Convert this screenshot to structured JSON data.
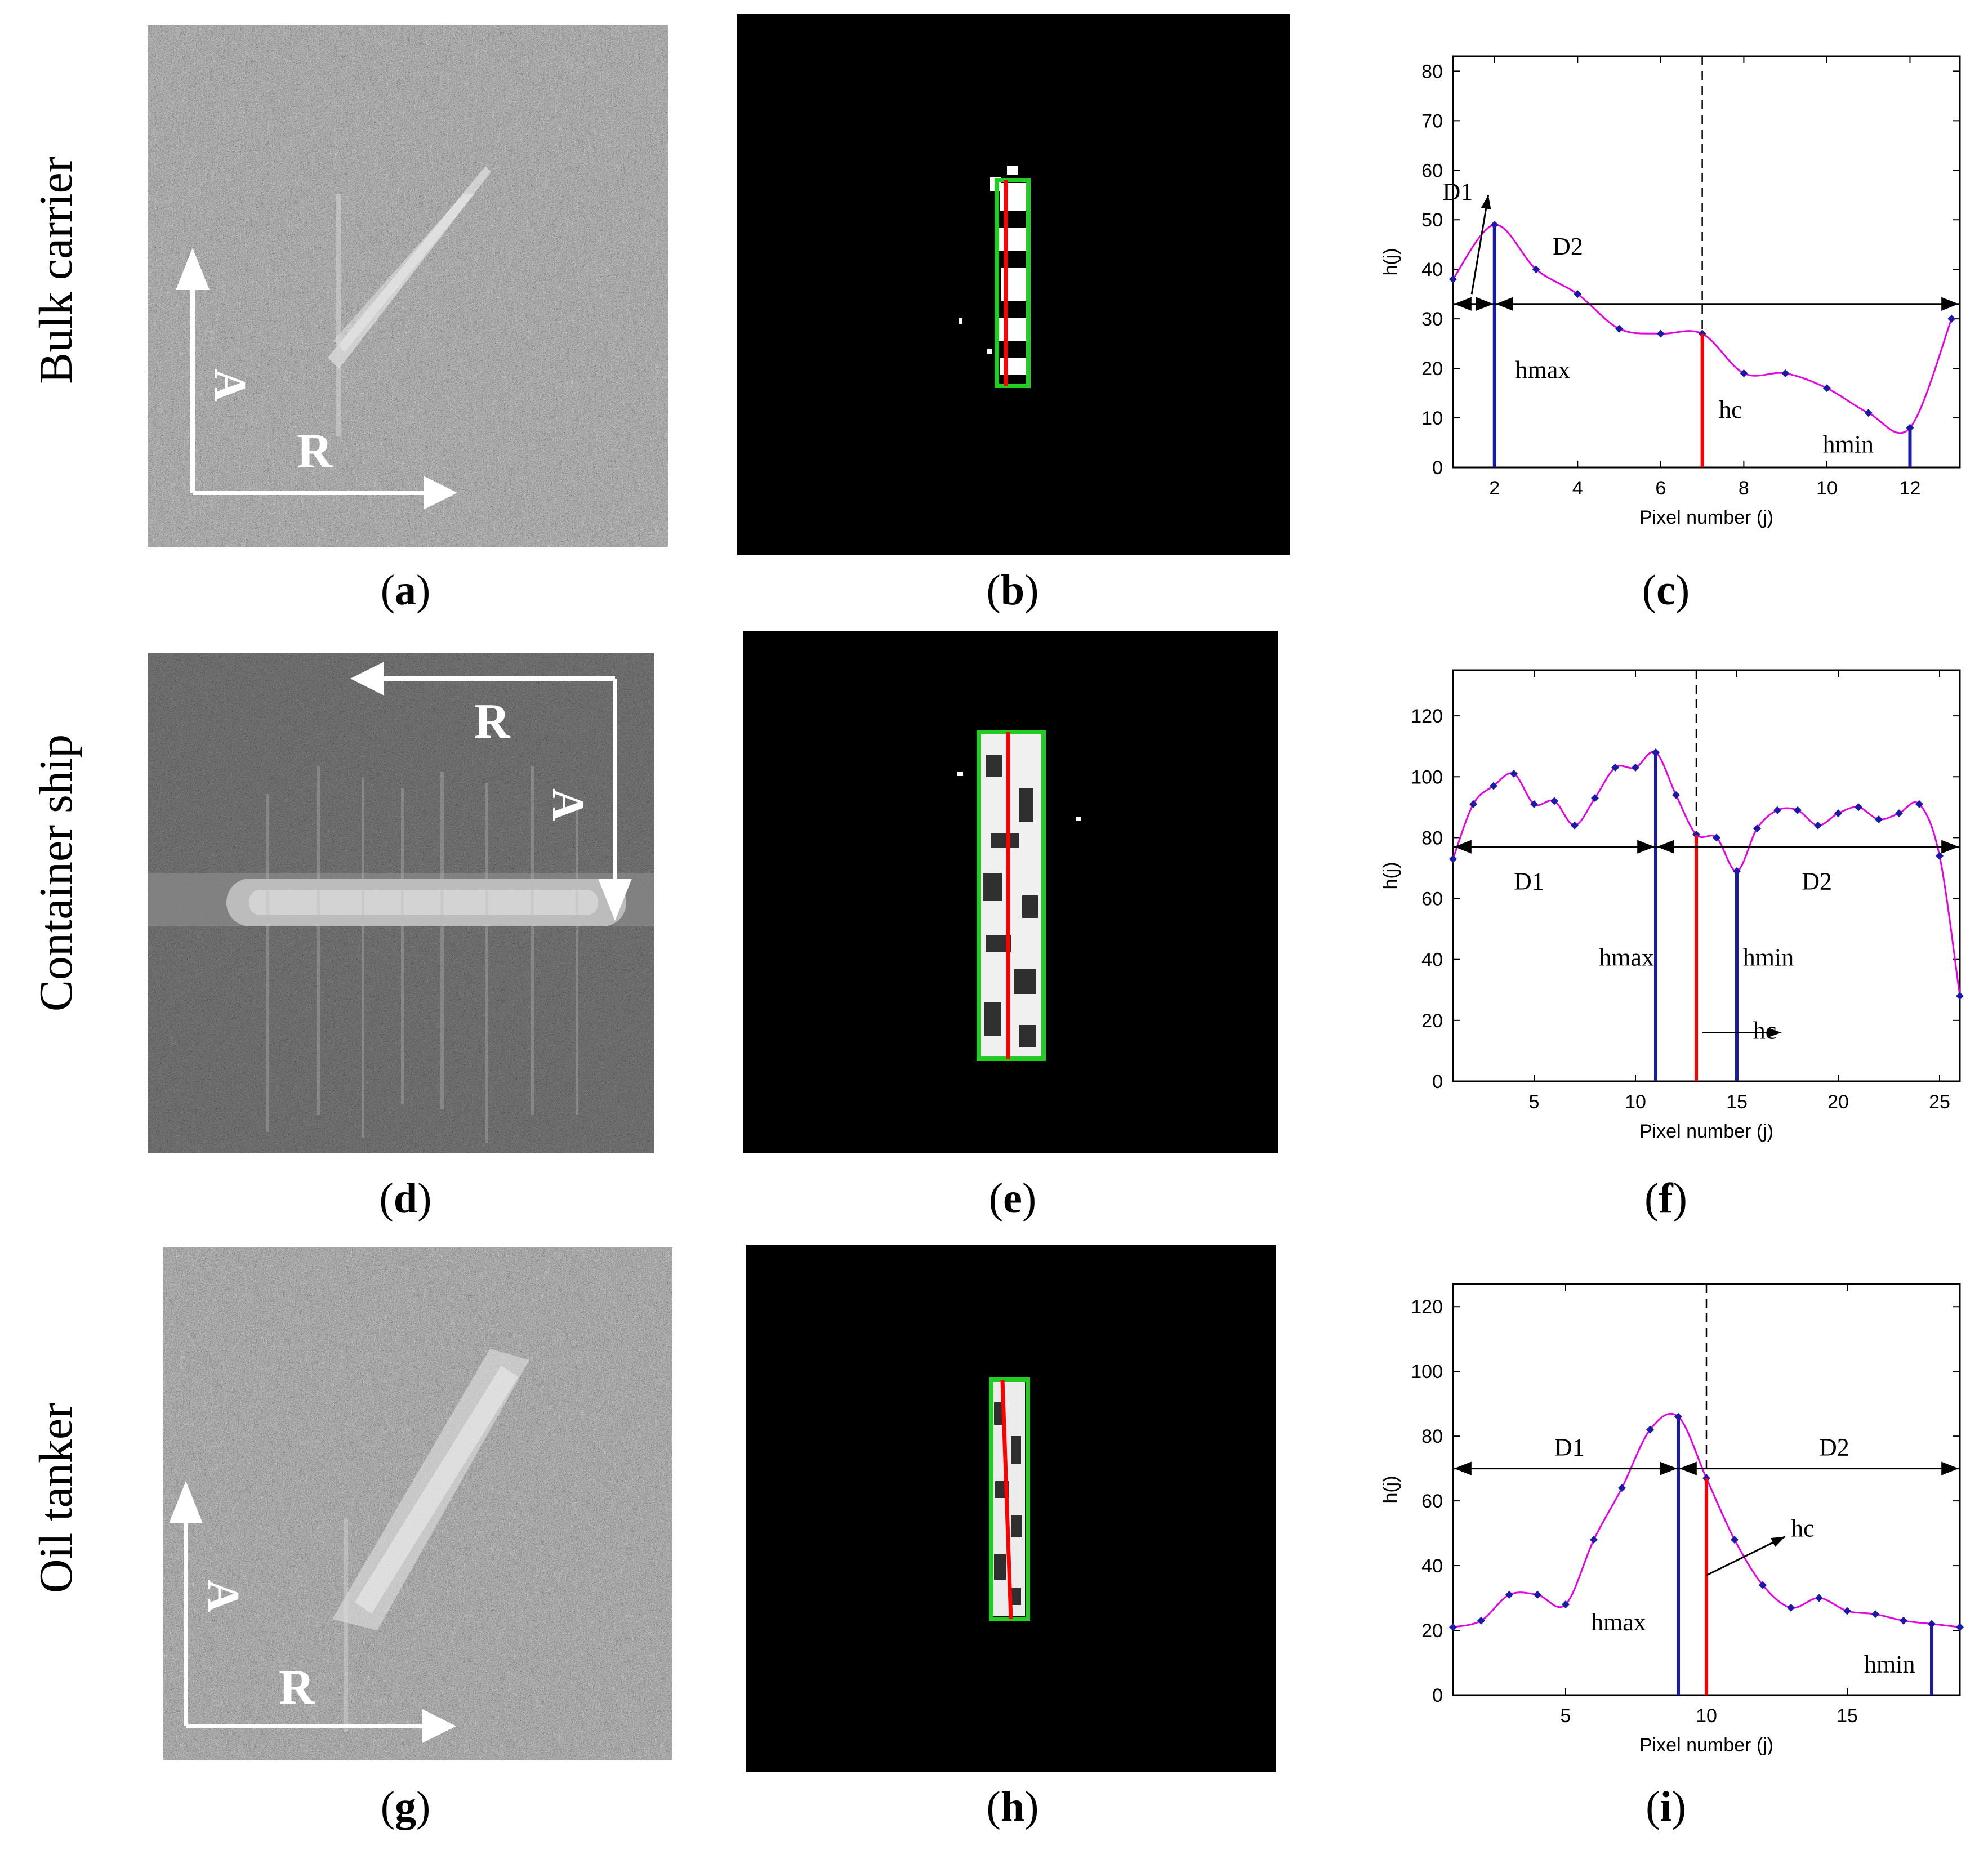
{
  "rows": [
    {
      "label": "Bulk carrier"
    },
    {
      "label": "Container ship"
    },
    {
      "label": "Oil tanker"
    }
  ],
  "captions": [
    "a",
    "b",
    "c",
    "d",
    "e",
    "f",
    "g",
    "h",
    "i"
  ],
  "sar_labels": {
    "range": "R",
    "azimuth": "A"
  },
  "colors": {
    "curve": "#e600e6",
    "points": "#1a1aa6",
    "hmax_line": "#1a1aa6",
    "hmin_line": "#1a1aa6",
    "hc_line": "#ff0000",
    "box": "#22cc22",
    "axis_red": "#ff0000"
  },
  "chart_data": [
    {
      "type": "line",
      "xlabel": "Pixel number (j)",
      "ylabel": "h(j)",
      "xlim": [
        1,
        13.2
      ],
      "ylim": [
        0,
        83
      ],
      "xticks": [
        2,
        4,
        6,
        8,
        10,
        12
      ],
      "yticks": [
        0,
        10,
        20,
        30,
        40,
        50,
        60,
        70,
        80
      ],
      "x": [
        1,
        2,
        3,
        4,
        5,
        6,
        7,
        8,
        9,
        10,
        11,
        12,
        13
      ],
      "values": [
        38,
        49,
        40,
        35,
        28,
        27,
        27,
        19,
        19,
        16,
        11,
        8,
        30
      ],
      "annotations": {
        "hmax": "hmax",
        "hc": "hc",
        "hmin": "hmin",
        "D1": "D1",
        "D2": "D2"
      },
      "hmax_x": 2,
      "hc_x": 7,
      "hmin_x": 12,
      "arrow_y": 33,
      "dashed_x": 7
    },
    {
      "type": "line",
      "xlabel": "Pixel number (j)",
      "ylabel": "h(j)",
      "xlim": [
        1,
        26
      ],
      "ylim": [
        0,
        135
      ],
      "xticks": [
        5,
        10,
        15,
        20,
        25
      ],
      "yticks": [
        0,
        20,
        40,
        60,
        80,
        100,
        120
      ],
      "x": [
        1,
        2,
        3,
        4,
        5,
        6,
        7,
        8,
        9,
        10,
        11,
        12,
        13,
        14,
        15,
        16,
        17,
        18,
        19,
        20,
        21,
        22,
        23,
        24,
        25,
        26
      ],
      "values": [
        73,
        91,
        97,
        101,
        91,
        92,
        84,
        93,
        103,
        103,
        108,
        94,
        81,
        80,
        69,
        83,
        89,
        89,
        84,
        88,
        90,
        86,
        88,
        91,
        74,
        28
      ],
      "annotations": {
        "hmax": "hmax",
        "hc": "hc",
        "hmin": "hmin",
        "D1": "D1",
        "D2": "D2"
      },
      "hmax_x": 11,
      "hc_x": 13,
      "hmin_x": 15,
      "arrow_y": 77,
      "dashed_x": 13
    },
    {
      "type": "line",
      "xlabel": "Pixel number (j)",
      "ylabel": "h(j)",
      "xlim": [
        1,
        19
      ],
      "ylim": [
        0,
        127
      ],
      "xticks": [
        5,
        10,
        15
      ],
      "yticks": [
        0,
        20,
        40,
        60,
        80,
        100,
        120
      ],
      "x": [
        1,
        2,
        3,
        4,
        5,
        6,
        7,
        8,
        9,
        10,
        11,
        12,
        13,
        14,
        15,
        16,
        17,
        18,
        19
      ],
      "values": [
        21,
        23,
        31,
        31,
        28,
        48,
        64,
        82,
        86,
        67,
        48,
        34,
        27,
        30,
        26,
        25,
        23,
        22,
        21
      ],
      "annotations": {
        "hmax": "hmax",
        "hc": "hc",
        "hmin": "hmin",
        "D1": "D1",
        "D2": "D2"
      },
      "hmax_x": 9,
      "hc_x": 10,
      "hmin_x": 18,
      "arrow_y": 70,
      "dashed_x": 10
    }
  ]
}
